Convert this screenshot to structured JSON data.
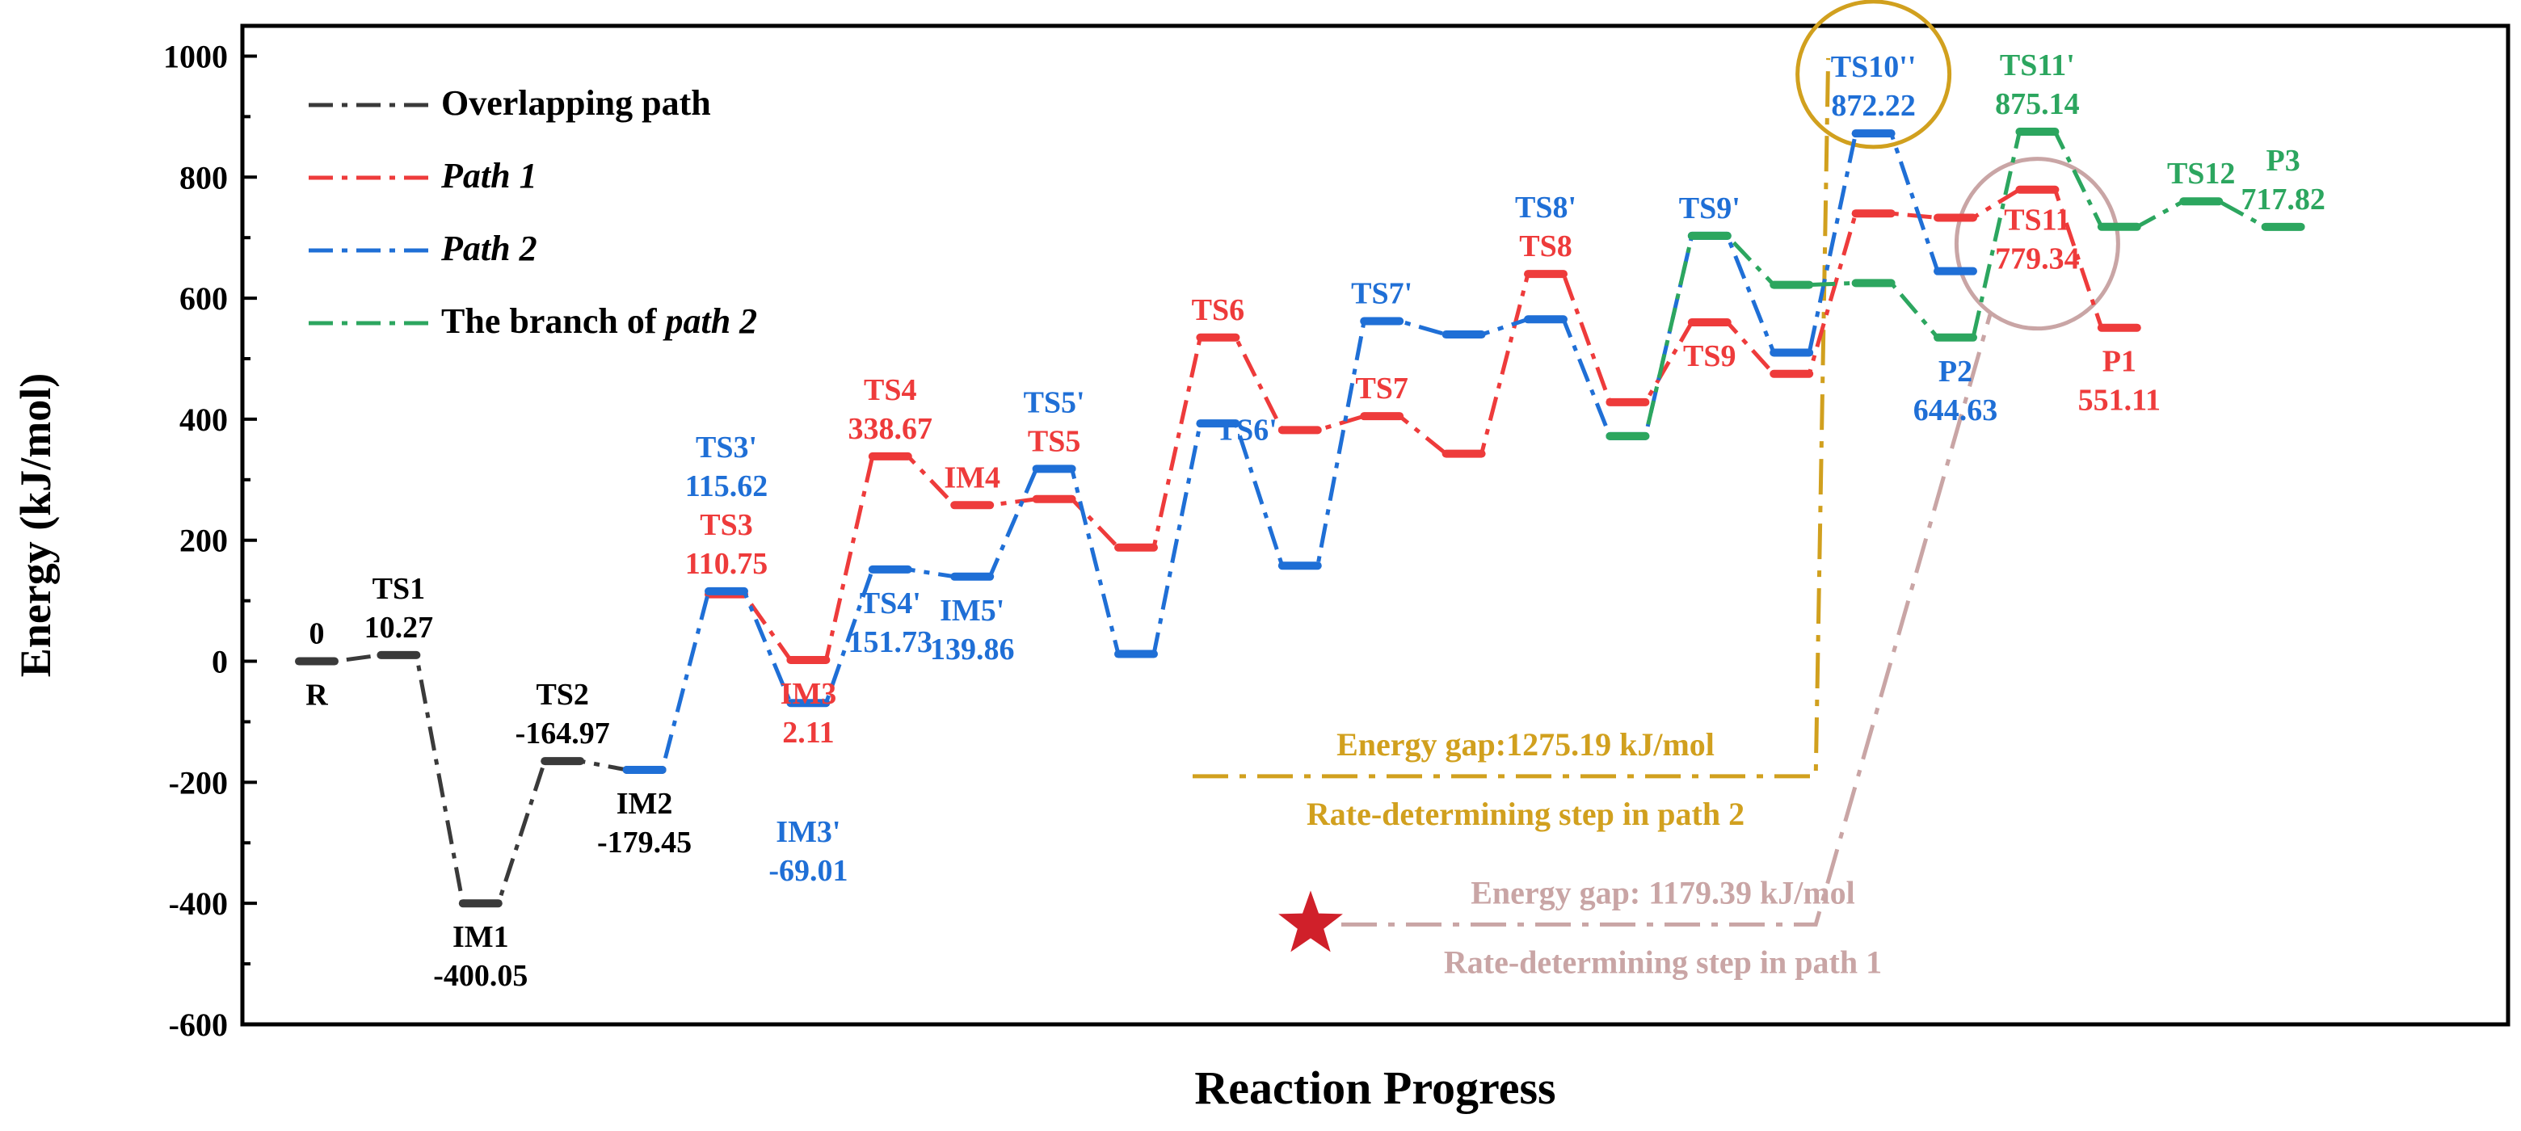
{
  "chart_data": {
    "type": "line",
    "title": "",
    "xlabel": "Reaction Progress",
    "ylabel": "Energy (kJ/mol)",
    "ylim": [
      -600,
      1050
    ],
    "yticks": [
      -600,
      -400,
      -200,
      0,
      200,
      400,
      600,
      800,
      1000
    ],
    "grid": false,
    "legend_position": "top-left",
    "colors": {
      "overlap": "#3a3a3a",
      "path1": "#ee3b3b",
      "path2": "#1f6fd6",
      "branch": "#2ca65f",
      "gold": "#d1a01e",
      "rose": "#c9a5a5",
      "star": "#d0202a",
      "axis": "#000000"
    },
    "legend": [
      {
        "key": "overlap",
        "parts": [
          {
            "t": "Overlapping path",
            "i": false
          }
        ]
      },
      {
        "key": "path1",
        "parts": [
          {
            "t": "Path 1",
            "i": true
          }
        ]
      },
      {
        "key": "path2",
        "parts": [
          {
            "t": "Path 2",
            "i": true
          }
        ]
      },
      {
        "key": "branch",
        "parts": [
          {
            "t": "The branch of ",
            "i": false
          },
          {
            "t": "path 2",
            "i": true
          }
        ]
      }
    ],
    "series": [
      {
        "name": "Overlapping path",
        "key": "overlap",
        "points": [
          {
            "x": 1,
            "y": 0
          },
          {
            "x": 2,
            "y": 10.27
          },
          {
            "x": 3,
            "y": -400.05
          },
          {
            "x": 4,
            "y": -164.97
          },
          {
            "x": 5,
            "y": -179.45
          }
        ]
      },
      {
        "name": "Path 1",
        "key": "path1",
        "points": [
          {
            "x": 6,
            "y": 110.75
          },
          {
            "x": 7,
            "y": 2.11
          },
          {
            "x": 8,
            "y": 338.67
          },
          {
            "x": 9,
            "y": 258
          },
          {
            "x": 10,
            "y": 268
          },
          {
            "x": 11,
            "y": 188
          },
          {
            "x": 12,
            "y": 535
          },
          {
            "x": 13,
            "y": 382
          },
          {
            "x": 14,
            "y": 405
          },
          {
            "x": 15,
            "y": 343
          },
          {
            "x": 16,
            "y": 640
          },
          {
            "x": 17,
            "y": 428
          },
          {
            "x": 18,
            "y": 560
          },
          {
            "x": 19,
            "y": 475
          },
          {
            "x": 20,
            "y": 740
          },
          {
            "x": 21,
            "y": 733
          },
          {
            "x": 22,
            "y": 779.34
          },
          {
            "x": 23,
            "y": 551.11
          }
        ]
      },
      {
        "name": "Path 2",
        "key": "path2",
        "points": [
          {
            "x": 5,
            "y": -179.45
          },
          {
            "x": 6,
            "y": 115.62
          },
          {
            "x": 7,
            "y": -69.01
          },
          {
            "x": 8,
            "y": 151.73
          },
          {
            "x": 9,
            "y": 139.86
          },
          {
            "x": 10,
            "y": 318
          },
          {
            "x": 11,
            "y": 12
          },
          {
            "x": 12,
            "y": 393
          },
          {
            "x": 13,
            "y": 158
          },
          {
            "x": 14,
            "y": 562
          },
          {
            "x": 15,
            "y": 540
          },
          {
            "x": 16,
            "y": 565
          },
          {
            "x": 17,
            "y": 372
          },
          {
            "x": 18,
            "y": 703
          },
          {
            "x": 19,
            "y": 510
          },
          {
            "x": 20,
            "y": 872.22
          },
          {
            "x": 21,
            "y": 644.63
          }
        ]
      },
      {
        "name": "The branch of path 2",
        "key": "branch",
        "points": [
          {
            "x": 17,
            "y": 372
          },
          {
            "x": 18,
            "y": 703
          },
          {
            "x": 19,
            "y": 622
          },
          {
            "x": 20,
            "y": 625
          },
          {
            "x": 21,
            "y": 535
          },
          {
            "x": 22,
            "y": 875.14
          },
          {
            "x": 23,
            "y": 718
          },
          {
            "x": 24,
            "y": 760
          },
          {
            "x": 25,
            "y": 717.82
          }
        ]
      }
    ],
    "annotations": [
      {
        "lines": [
          "0"
        ],
        "key": "axis",
        "x": 1,
        "y": 0,
        "pos": "above"
      },
      {
        "lines": [
          "R"
        ],
        "key": "axis",
        "x": 1,
        "y": 0,
        "pos": "below"
      },
      {
        "lines": [
          "TS1",
          "10.27"
        ],
        "key": "axis",
        "x": 2,
        "y": 10.27,
        "pos": "above"
      },
      {
        "lines": [
          "IM1",
          "-400.05"
        ],
        "key": "axis",
        "x": 3,
        "y": -400.05,
        "pos": "below"
      },
      {
        "lines": [
          "TS2",
          "-164.97"
        ],
        "key": "axis",
        "x": 4,
        "y": -164.97,
        "pos": "above"
      },
      {
        "lines": [
          "IM2",
          "-179.45"
        ],
        "key": "axis",
        "x": 5,
        "y": -179.45,
        "pos": "below"
      },
      {
        "lines": [
          "TS3'",
          "115.62",
          "TS3",
          "110.75"
        ],
        "colors": [
          "path2",
          "path2",
          "path1",
          "path1"
        ],
        "x": 6,
        "y": 115.62,
        "pos": "above"
      },
      {
        "lines": [
          "IM3",
          "2.11"
        ],
        "key": "path1",
        "x": 7,
        "y": 2.11,
        "pos": "below",
        "gap": 54
      },
      {
        "lines": [
          "IM3'",
          "-69.01"
        ],
        "key": "path2",
        "x": 7,
        "y": -69.01,
        "pos": "below",
        "gap": 172
      },
      {
        "lines": [
          "TS4",
          "338.67"
        ],
        "key": "path1",
        "x": 8,
        "y": 338.67,
        "pos": "above"
      },
      {
        "lines": [
          "TS4'",
          "151.73"
        ],
        "key": "path2",
        "x": 8,
        "y": 151.73,
        "pos": "below"
      },
      {
        "lines": [
          "IM4"
        ],
        "key": "path1",
        "x": 9,
        "y": 258,
        "pos": "above"
      },
      {
        "lines": [
          "IM5'",
          "139.86"
        ],
        "key": "path2",
        "x": 9,
        "y": 139.86,
        "pos": "below"
      },
      {
        "lines": [
          "TS5'",
          "TS5"
        ],
        "colors": [
          "path2",
          "path1"
        ],
        "x": 10,
        "y": 318,
        "pos": "above"
      },
      {
        "lines": [
          "TS6"
        ],
        "key": "path1",
        "x": 12,
        "y": 535,
        "pos": "above"
      },
      {
        "lines": [
          "TS6'"
        ],
        "key": "path2",
        "x": 13,
        "y": 382,
        "pos": "left"
      },
      {
        "lines": [
          "TS7'"
        ],
        "key": "path2",
        "x": 14,
        "y": 562,
        "pos": "above"
      },
      {
        "lines": [
          "TS7"
        ],
        "key": "path1",
        "x": 14,
        "y": 405,
        "pos": "above"
      },
      {
        "lines": [
          "TS8'",
          "TS8"
        ],
        "colors": [
          "path2",
          "path1"
        ],
        "x": 16,
        "y": 640,
        "pos": "above"
      },
      {
        "lines": [
          "TS9'"
        ],
        "key": "path2",
        "x": 18,
        "y": 703,
        "pos": "above"
      },
      {
        "lines": [
          "TS9"
        ],
        "key": "path1",
        "x": 18,
        "y": 560,
        "pos": "below"
      },
      {
        "lines": [
          "TS10''",
          "872.22"
        ],
        "key": "path2",
        "x": 20,
        "y": 872.22,
        "pos": "above"
      },
      {
        "lines": [
          "P2",
          "644.63"
        ],
        "key": "path2",
        "x": 21,
        "y": 535,
        "pos": "below"
      },
      {
        "lines": [
          "TS11'",
          "875.14"
        ],
        "key": "branch",
        "x": 22,
        "y": 875.14,
        "pos": "above"
      },
      {
        "lines": [
          "TS11",
          "779.34"
        ],
        "key": "path1",
        "x": 22,
        "y": 779.34,
        "pos": "below",
        "gap": 50
      },
      {
        "lines": [
          "P1",
          "551.11"
        ],
        "key": "path1",
        "x": 23,
        "y": 551.11,
        "pos": "below"
      },
      {
        "lines": [
          "TS12"
        ],
        "key": "branch",
        "x": 24,
        "y": 760,
        "pos": "above"
      },
      {
        "lines": [
          "P3",
          "717.82"
        ],
        "key": "branch",
        "x": 25,
        "y": 717.82,
        "pos": "above"
      }
    ],
    "rate_steps": [
      {
        "key": "gold",
        "title": "Energy gap:1275.19 kJ/mol",
        "subtitle": "Rate-determining step in path 2",
        "x_from": 11,
        "x_to": 19,
        "y_level": -190,
        "circle": {
          "x": 20,
          "y": 970
        }
      },
      {
        "key": "rose",
        "title": "Energy gap: 1179.39 kJ/mol",
        "subtitle": "Rate-determining step in path 1",
        "x_from": 11,
        "x_to": 19,
        "y_level": -435,
        "circle": {
          "x": 22,
          "y": 690
        },
        "marker": "star"
      }
    ]
  }
}
